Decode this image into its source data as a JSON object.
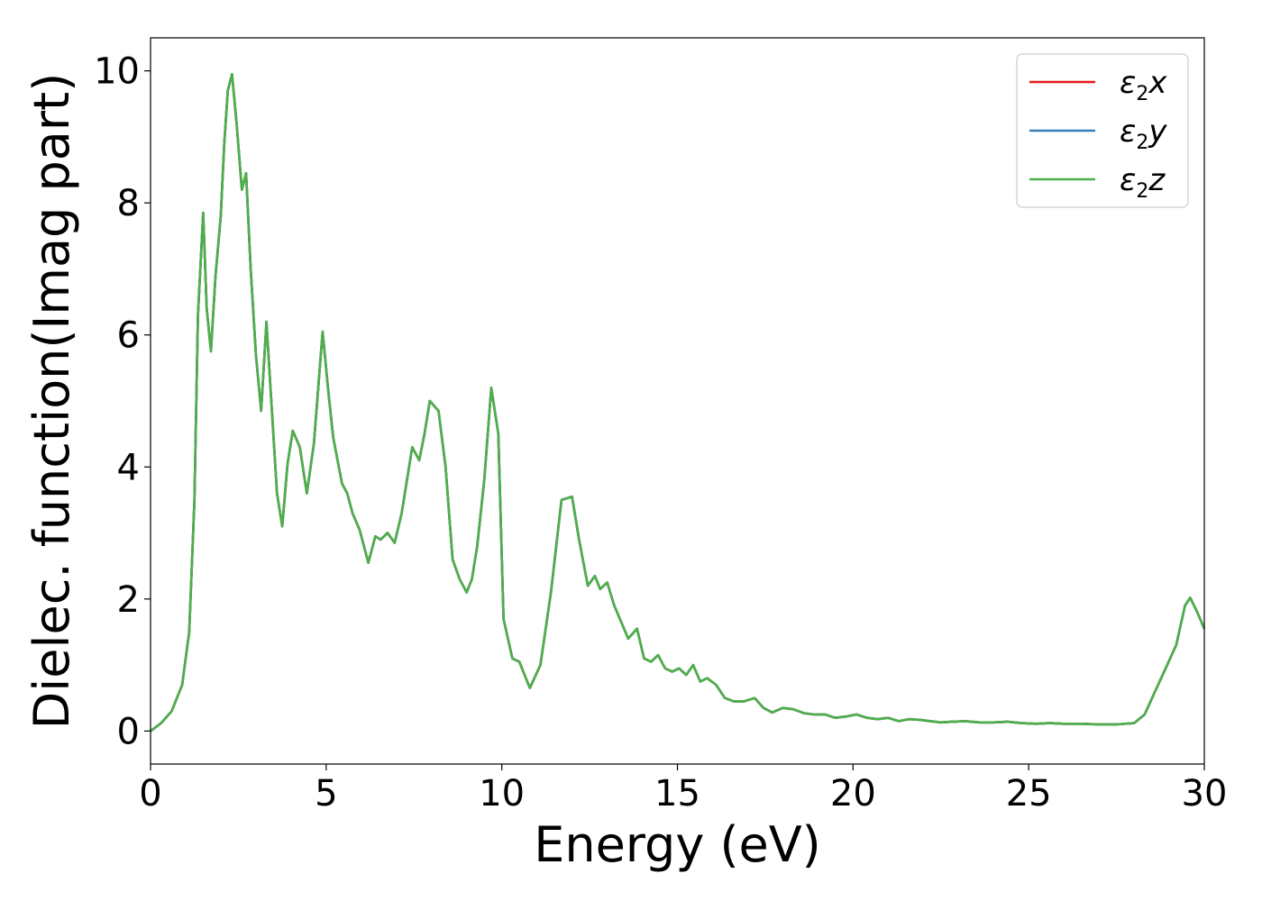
{
  "chart_data": {
    "type": "line",
    "title": "",
    "xlabel": "Energy (eV)",
    "ylabel": "Dielec. function(Imag part)",
    "xlim": [
      0,
      30
    ],
    "ylim": [
      -0.5,
      10.5
    ],
    "xticks": [
      "0",
      "5",
      "10",
      "15",
      "20",
      "25",
      "30"
    ],
    "yticks": [
      "0",
      "2",
      "4",
      "6",
      "8",
      "10"
    ],
    "grid": false,
    "legend_position": "upper-right",
    "series": [
      {
        "name": "ε2x",
        "symbol": "ε",
        "sub": "2",
        "axis": "x",
        "color": "#e41a1c"
      },
      {
        "name": "ε2y",
        "symbol": "ε",
        "sub": "2",
        "axis": "y",
        "color": "#377eb8"
      },
      {
        "name": "ε2z",
        "symbol": "ε",
        "sub": "2",
        "axis": "z",
        "color": "#4daf4a"
      }
    ],
    "x": [
      0,
      0.3,
      0.6,
      0.9,
      1.1,
      1.25,
      1.35,
      1.5,
      1.6,
      1.72,
      1.85,
      2.0,
      2.1,
      2.2,
      2.32,
      2.45,
      2.6,
      2.72,
      2.85,
      3.0,
      3.15,
      3.3,
      3.45,
      3.6,
      3.75,
      3.9,
      4.05,
      4.25,
      4.45,
      4.65,
      4.9,
      5.05,
      5.2,
      5.45,
      5.6,
      5.75,
      5.95,
      6.2,
      6.4,
      6.55,
      6.75,
      6.95,
      7.15,
      7.45,
      7.65,
      7.8,
      7.95,
      8.2,
      8.4,
      8.6,
      8.8,
      9.0,
      9.15,
      9.3,
      9.5,
      9.7,
      9.9,
      10.05,
      10.3,
      10.5,
      10.8,
      11.1,
      11.4,
      11.7,
      12.0,
      12.2,
      12.45,
      12.65,
      12.8,
      13.0,
      13.2,
      13.4,
      13.6,
      13.85,
      14.05,
      14.25,
      14.45,
      14.65,
      14.85,
      15.05,
      15.25,
      15.45,
      15.65,
      15.85,
      16.1,
      16.35,
      16.6,
      16.9,
      17.2,
      17.45,
      17.7,
      18.0,
      18.3,
      18.6,
      18.9,
      19.2,
      19.5,
      19.8,
      20.1,
      20.4,
      20.7,
      21.0,
      21.3,
      21.6,
      21.9,
      22.2,
      22.5,
      22.8,
      23.2,
      23.6,
      24.0,
      24.4,
      24.8,
      25.2,
      25.6,
      26.0,
      26.5,
      27.0,
      27.5,
      28.0,
      28.3,
      28.6,
      28.9,
      29.2,
      29.45,
      29.6,
      29.8,
      30.0
    ],
    "y": [
      0.0,
      0.12,
      0.3,
      0.7,
      1.5,
      3.5,
      6.3,
      7.85,
      6.4,
      5.75,
      6.9,
      7.8,
      8.9,
      9.7,
      9.95,
      9.2,
      8.2,
      8.45,
      7.0,
      5.7,
      4.85,
      6.2,
      4.9,
      3.6,
      3.1,
      4.05,
      4.55,
      4.3,
      3.6,
      4.35,
      6.05,
      5.2,
      4.45,
      3.75,
      3.6,
      3.3,
      3.05,
      2.55,
      2.95,
      2.9,
      3.0,
      2.85,
      3.3,
      4.3,
      4.1,
      4.5,
      5.0,
      4.85,
      4.0,
      2.6,
      2.3,
      2.1,
      2.3,
      2.8,
      3.8,
      5.2,
      4.5,
      1.7,
      1.1,
      1.05,
      0.65,
      1.0,
      2.1,
      3.5,
      3.55,
      2.9,
      2.2,
      2.35,
      2.15,
      2.25,
      1.9,
      1.65,
      1.4,
      1.55,
      1.1,
      1.05,
      1.15,
      0.95,
      0.9,
      0.95,
      0.85,
      1.0,
      0.75,
      0.8,
      0.7,
      0.5,
      0.45,
      0.45,
      0.5,
      0.35,
      0.28,
      0.35,
      0.33,
      0.27,
      0.25,
      0.25,
      0.2,
      0.22,
      0.25,
      0.2,
      0.18,
      0.2,
      0.15,
      0.18,
      0.17,
      0.15,
      0.13,
      0.14,
      0.15,
      0.13,
      0.13,
      0.14,
      0.12,
      0.11,
      0.12,
      0.11,
      0.11,
      0.1,
      0.1,
      0.12,
      0.25,
      0.6,
      0.95,
      1.3,
      1.9,
      2.02,
      1.8,
      1.55
    ]
  }
}
